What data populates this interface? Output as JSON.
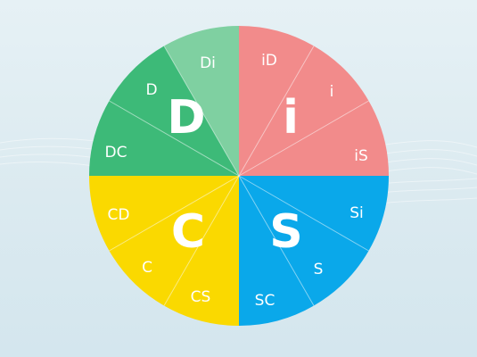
{
  "disc_wheel": {
    "quadrants": [
      {
        "id": "D",
        "label": "D",
        "color": "#3dba78"
      },
      {
        "id": "i",
        "label": "i",
        "color": "#f28b8b"
      },
      {
        "id": "S",
        "label": "S",
        "color": "#0aa8ea"
      },
      {
        "id": "C",
        "label": "C",
        "color": "#fad900"
      }
    ],
    "segments": [
      {
        "id": "Di",
        "label": "Di",
        "color": "#7fd0a1"
      },
      {
        "id": "D",
        "label": "D",
        "color": "#3dba78"
      },
      {
        "id": "DC",
        "label": "DC",
        "color": "#3dba78"
      },
      {
        "id": "iD",
        "label": "iD",
        "color": "#f28b8b"
      },
      {
        "id": "i",
        "label": "i",
        "color": "#f28b8b"
      },
      {
        "id": "iS",
        "label": "iS",
        "color": "#f28b8b"
      },
      {
        "id": "Si",
        "label": "Si",
        "color": "#0aa8ea"
      },
      {
        "id": "S",
        "label": "S",
        "color": "#0aa8ea"
      },
      {
        "id": "SC",
        "label": "SC",
        "color": "#0aa8ea"
      },
      {
        "id": "CS",
        "label": "CS",
        "color": "#fad900"
      },
      {
        "id": "C",
        "label": "C",
        "color": "#fad900"
      },
      {
        "id": "CD",
        "label": "CD",
        "color": "#fad900"
      }
    ]
  }
}
